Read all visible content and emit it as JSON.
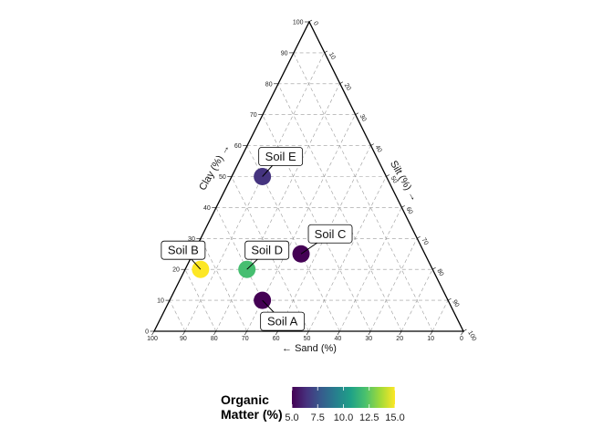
{
  "chart_data": {
    "type": "scatter",
    "subtype": "ternary",
    "axes": {
      "sand": {
        "label": "← Sand (%)",
        "ticks": [
          0,
          10,
          20,
          30,
          40,
          50,
          60,
          70,
          80,
          90,
          100
        ]
      },
      "clay": {
        "label": "Clay (%) →",
        "ticks": [
          0,
          10,
          20,
          30,
          40,
          50,
          60,
          70,
          80,
          90,
          100
        ]
      },
      "silt": {
        "label": "Silt (%) →",
        "ticks": [
          0,
          10,
          20,
          30,
          40,
          50,
          60,
          70,
          80,
          90,
          100
        ]
      }
    },
    "grid": true,
    "points": [
      {
        "label": "Soil A",
        "sand": 60,
        "clay": 10,
        "silt": 30,
        "organic_matter": 5.0
      },
      {
        "label": "Soil B",
        "sand": 75,
        "clay": 20,
        "silt": 5,
        "organic_matter": 15.0
      },
      {
        "label": "Soil C",
        "sand": 40,
        "clay": 25,
        "silt": 35,
        "organic_matter": 5.0
      },
      {
        "label": "Soil D",
        "sand": 60,
        "clay": 20,
        "silt": 20,
        "organic_matter": 12.0
      },
      {
        "label": "Soil E",
        "sand": 40,
        "clay": 50,
        "silt": 10,
        "organic_matter": 6.5
      }
    ],
    "legend": {
      "title": "Organic\nMatter (%)",
      "position": "bottom",
      "min": 5.0,
      "max": 15.0,
      "ticks": [
        "5.0",
        "7.5",
        "10.0",
        "12.5",
        "15.0"
      ],
      "colors": [
        "#440154",
        "#46327e",
        "#365c8d",
        "#277f8e",
        "#1fa187",
        "#4ac16d",
        "#a0da39",
        "#fde725"
      ]
    }
  }
}
